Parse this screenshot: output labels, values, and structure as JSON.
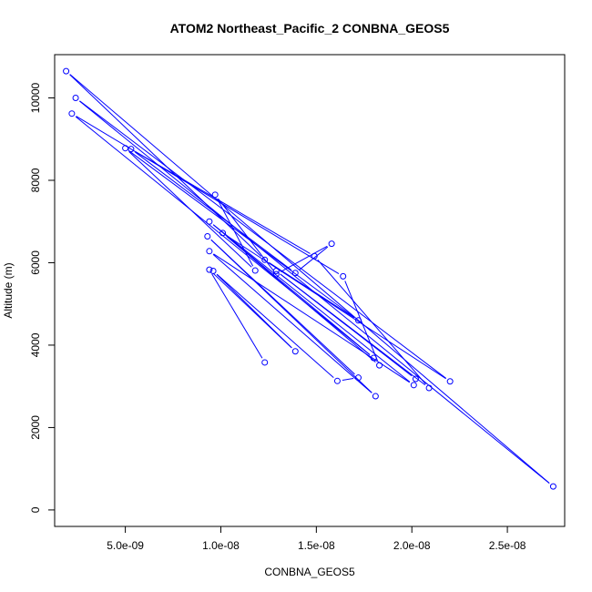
{
  "chart_data": {
    "type": "line",
    "title": "ATOM2 Northeast_Pacific_2 CONBNA_GEOS5",
    "xlabel": "CONBNA_GEOS5",
    "ylabel": "Altitude (m)",
    "xlim": [
      1.3e-09,
      2.8e-08
    ],
    "ylim": [
      -400,
      11050
    ],
    "x_ticks": [
      5e-09,
      1e-08,
      1.5e-08,
      2e-08,
      2.5e-08
    ],
    "x_tick_labels": [
      "5.0e-09",
      "1.0e-08",
      "1.5e-08",
      "2.0e-08",
      "2.5e-08"
    ],
    "y_ticks": [
      0,
      2000,
      4000,
      6000,
      8000,
      10000
    ],
    "y_tick_labels": [
      "0",
      "2000",
      "4000",
      "6000",
      "8000",
      "10000"
    ],
    "grid": false,
    "legend": "none",
    "series": [
      {
        "color": "#0000ff",
        "marker": "open-circle",
        "points": [
          {
            "x": 1.23e-08,
            "y": 3580
          },
          {
            "x": 9.4e-09,
            "y": 5830
          },
          {
            "x": 1.39e-08,
            "y": 3850
          },
          {
            "x": 9.6e-09,
            "y": 5800
          },
          {
            "x": 1.61e-08,
            "y": 3130
          },
          {
            "x": 1.72e-08,
            "y": 3210
          },
          {
            "x": 9.3e-09,
            "y": 6640
          },
          {
            "x": 1.81e-08,
            "y": 2760
          },
          {
            "x": 9.4e-09,
            "y": 6280
          },
          {
            "x": 2.01e-08,
            "y": 3030
          },
          {
            "x": 9.4e-09,
            "y": 7000
          },
          {
            "x": 1.8e-08,
            "y": 3690
          },
          {
            "x": 2.2e-09,
            "y": 9620
          },
          {
            "x": 1.64e-08,
            "y": 5670
          },
          {
            "x": 1.83e-08,
            "y": 3510
          },
          {
            "x": 1.01e-08,
            "y": 6720
          },
          {
            "x": 2.2e-08,
            "y": 3120
          },
          {
            "x": 2.4e-09,
            "y": 10000
          },
          {
            "x": 2.74e-08,
            "y": 570
          },
          {
            "x": 1.9e-09,
            "y": 10650
          },
          {
            "x": 1.23e-08,
            "y": 6070
          },
          {
            "x": 1.72e-08,
            "y": 4600
          },
          {
            "x": 5e-09,
            "y": 8780
          },
          {
            "x": 1.18e-08,
            "y": 5810
          },
          {
            "x": 9.7e-09,
            "y": 7650
          },
          {
            "x": 1.29e-08,
            "y": 5720
          },
          {
            "x": 1.58e-08,
            "y": 6460
          },
          {
            "x": 1.39e-08,
            "y": 5750
          },
          {
            "x": 5.3e-09,
            "y": 8760
          },
          {
            "x": 1.49e-08,
            "y": 6160
          },
          {
            "x": 2.09e-08,
            "y": 2960
          },
          {
            "x": 1.29e-08,
            "y": 5800
          },
          {
            "x": 2.02e-08,
            "y": 3180
          }
        ]
      }
    ]
  }
}
